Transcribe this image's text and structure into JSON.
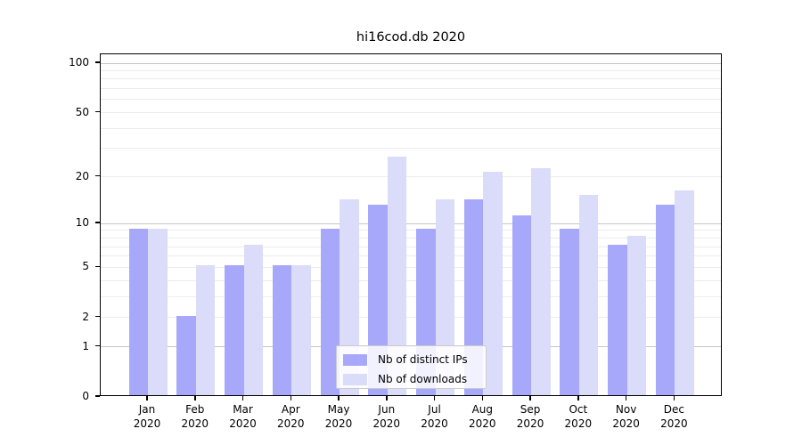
{
  "chart_data": {
    "type": "bar",
    "title": "hi16cod.db 2020",
    "categories": [
      "Jan",
      "Feb",
      "Mar",
      "Apr",
      "May",
      "Jun",
      "Jul",
      "Aug",
      "Sep",
      "Oct",
      "Nov",
      "Dec"
    ],
    "category_year": "2020",
    "series": [
      {
        "name": "Nb of distinct IPs",
        "color": "#a8a8fb",
        "values": [
          9,
          2,
          5,
          5,
          9,
          13,
          9,
          14,
          11,
          9,
          7,
          13
        ]
      },
      {
        "name": "Nb of downloads",
        "color": "#dbdbfa",
        "values": [
          9,
          5,
          7,
          5,
          14,
          26,
          14,
          21,
          22,
          15,
          8,
          16
        ]
      }
    ],
    "yaxis": {
      "scale": "symlog",
      "ylim": [
        0,
        100
      ],
      "tick_labels": [
        0,
        1,
        2,
        5,
        10,
        20,
        50,
        100
      ],
      "major_gridlines": [
        1,
        10,
        100
      ],
      "minor_gridlines": [
        2,
        3,
        4,
        5,
        6,
        7,
        8,
        9,
        20,
        30,
        40,
        50,
        60,
        70,
        80,
        90
      ]
    },
    "xlabel": "",
    "ylabel": "",
    "grid": true,
    "legend_position": "inside-bottom-center"
  },
  "colors": {
    "major_grid": "#c6c6c6",
    "minor_grid": "#ececec",
    "axis": "#000000",
    "background": "#ffffff"
  }
}
